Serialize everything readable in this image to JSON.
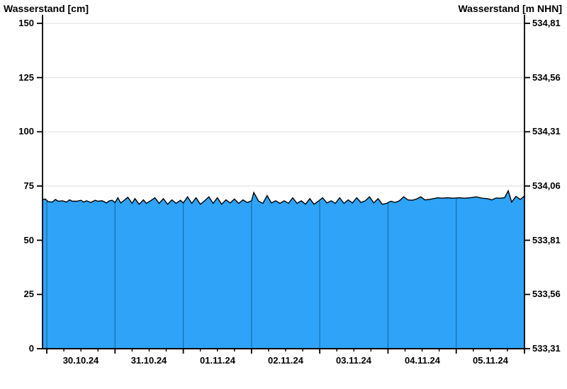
{
  "chart_data": {
    "type": "area",
    "title_left": "Wasserstand [cm]",
    "title_right": "Wasserstand [m NHN]",
    "x_tick_labels": [
      "30.10.24",
      "31.10.24",
      "01.11.24",
      "02.11.24",
      "03.11.24",
      "04.11.24",
      "05.11.24"
    ],
    "y_tick_values": [
      150,
      125,
      100,
      75,
      50,
      25,
      0
    ],
    "y_tick_labels_left": [
      "150",
      "125",
      "100",
      "75",
      "50",
      "25",
      "0"
    ],
    "y_tick_labels_right": [
      "534,81",
      "534,56",
      "534,31",
      "534,06",
      "533,81",
      "533,56",
      "533,31"
    ],
    "ylim": [
      0,
      150
    ],
    "xlim_hours": [
      -1.5,
      168
    ],
    "x_major_tick_hours": [
      0,
      24,
      48,
      72,
      96,
      120,
      144,
      168
    ],
    "x_minor_tick_step_hours": 6,
    "day_boundaries_hours": [
      0,
      24,
      48,
      72,
      96,
      120,
      144
    ],
    "grid": "horizontal-only",
    "legend": "none",
    "series": [
      {
        "name": "Wasserstand",
        "unit": "cm",
        "points": [
          [
            -1.5,
            68.8
          ],
          [
            -0.5,
            69.0
          ],
          [
            0.5,
            67.8
          ],
          [
            2,
            67.6
          ],
          [
            3,
            68.8
          ],
          [
            4,
            68.0
          ],
          [
            5.5,
            68.2
          ],
          [
            7,
            67.6
          ],
          [
            8,
            68.6
          ],
          [
            9,
            68.0
          ],
          [
            10.5,
            68.0
          ],
          [
            12,
            68.4
          ],
          [
            13,
            67.6
          ],
          [
            14,
            68.2
          ],
          [
            15.5,
            67.4
          ],
          [
            17,
            68.4
          ],
          [
            18,
            68.0
          ],
          [
            19.5,
            68.2
          ],
          [
            21,
            67.2
          ],
          [
            22,
            68.2
          ],
          [
            23,
            68.4
          ],
          [
            24,
            67.4
          ],
          [
            25,
            69.6
          ],
          [
            26,
            67.2
          ],
          [
            27,
            68.2
          ],
          [
            28.5,
            69.8
          ],
          [
            30,
            67.0
          ],
          [
            31,
            69.2
          ],
          [
            32.5,
            66.6
          ],
          [
            34,
            68.6
          ],
          [
            35,
            67.0
          ],
          [
            36.5,
            68.2
          ],
          [
            38,
            69.6
          ],
          [
            39.5,
            67.0
          ],
          [
            41,
            69.2
          ],
          [
            42.5,
            66.6
          ],
          [
            44,
            68.6
          ],
          [
            45.5,
            67.0
          ],
          [
            47,
            68.4
          ],
          [
            48,
            67.2
          ],
          [
            49.5,
            70.0
          ],
          [
            51,
            67.0
          ],
          [
            52.5,
            69.6
          ],
          [
            54,
            66.6
          ],
          [
            55.5,
            68.2
          ],
          [
            57,
            70.0
          ],
          [
            58.5,
            67.0
          ],
          [
            60,
            69.6
          ],
          [
            61.5,
            66.6
          ],
          [
            63,
            68.6
          ],
          [
            64.5,
            67.2
          ],
          [
            66,
            69.0
          ],
          [
            67.5,
            67.0
          ],
          [
            69,
            68.6
          ],
          [
            70.5,
            67.4
          ],
          [
            72,
            68.2
          ],
          [
            72.8,
            72.0
          ],
          [
            74.5,
            68.0
          ],
          [
            76,
            67.0
          ],
          [
            77.5,
            70.6
          ],
          [
            79,
            67.2
          ],
          [
            80.5,
            68.2
          ],
          [
            82,
            67.0
          ],
          [
            83.5,
            68.2
          ],
          [
            85,
            67.0
          ],
          [
            86.5,
            69.6
          ],
          [
            88,
            67.0
          ],
          [
            89.5,
            68.2
          ],
          [
            91,
            66.6
          ],
          [
            92.5,
            69.2
          ],
          [
            94,
            66.6
          ],
          [
            95.5,
            68.0
          ],
          [
            97,
            69.6
          ],
          [
            98.5,
            67.2
          ],
          [
            100,
            68.2
          ],
          [
            101.5,
            67.0
          ],
          [
            103,
            69.6
          ],
          [
            104.5,
            67.0
          ],
          [
            106,
            68.6
          ],
          [
            107.5,
            67.2
          ],
          [
            109,
            69.6
          ],
          [
            110.5,
            67.4
          ],
          [
            112,
            68.2
          ],
          [
            113.5,
            70.0
          ],
          [
            115,
            67.2
          ],
          [
            116.5,
            69.2
          ],
          [
            118,
            66.6
          ],
          [
            119.5,
            67.0
          ],
          [
            121,
            68.0
          ],
          [
            122.5,
            67.4
          ],
          [
            124,
            68.2
          ],
          [
            125.5,
            70.0
          ],
          [
            127,
            68.6
          ],
          [
            128.5,
            68.4
          ],
          [
            130,
            69.0
          ],
          [
            131.5,
            70.0
          ],
          [
            133,
            68.6
          ],
          [
            134.5,
            68.8
          ],
          [
            136,
            69.2
          ],
          [
            137.5,
            69.6
          ],
          [
            139,
            69.4
          ],
          [
            141,
            69.6
          ],
          [
            143,
            69.4
          ],
          [
            145,
            69.6
          ],
          [
            147,
            69.4
          ],
          [
            149,
            69.6
          ],
          [
            151,
            70.0
          ],
          [
            153,
            69.4
          ],
          [
            155,
            69.2
          ],
          [
            156.5,
            68.6
          ],
          [
            158,
            69.5
          ],
          [
            159.5,
            69.4
          ],
          [
            161,
            69.6
          ],
          [
            162.3,
            72.8
          ],
          [
            163.5,
            67.6
          ],
          [
            165,
            70.2
          ],
          [
            166.5,
            68.8
          ],
          [
            168,
            70.4
          ]
        ]
      }
    ],
    "colors": {
      "fill": "#2EA3F8",
      "outline": "#000000",
      "day_separator": "#1A6CA8",
      "gridline": "#DEDEDE",
      "axis": "#000000",
      "background": "#FFFFFF"
    }
  }
}
